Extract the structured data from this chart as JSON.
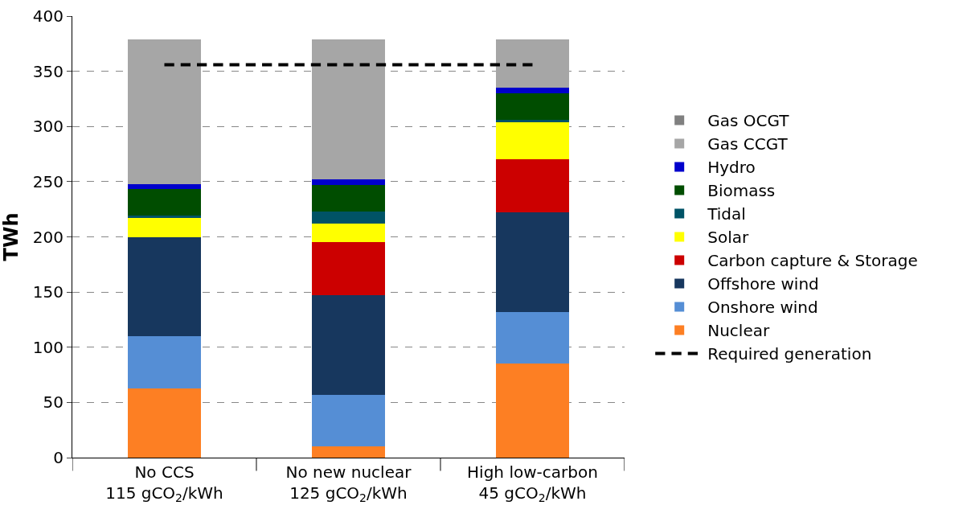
{
  "chart_data": {
    "type": "bar",
    "stacked": true,
    "ylabel": "TWh",
    "categories": [
      "No CCS\n115 gCO$_{2}$/kWh",
      "No new nuclear\n125 gCO$_{2}$/kWh",
      "High low-carbon\n45 gCO$_{2}$/kWh"
    ],
    "series": [
      {
        "name": "Nuclear",
        "color": "#fd7f23",
        "values": [
          63,
          10,
          85
        ]
      },
      {
        "name": "Onshore wind",
        "color": "#558ed5",
        "values": [
          47,
          47,
          47
        ]
      },
      {
        "name": "Offshore wind",
        "color": "#17375e",
        "values": [
          90,
          90,
          90
        ]
      },
      {
        "name": "Carbon capture & Storage",
        "color": "#cc0000",
        "values": [
          0,
          48,
          48
        ]
      },
      {
        "name": "Solar",
        "color": "#ffff00",
        "values": [
          17,
          17,
          34
        ]
      },
      {
        "name": "Tidal",
        "color": "#005366",
        "values": [
          2,
          11,
          2
        ]
      },
      {
        "name": "Biomass",
        "color": "#004d00",
        "values": [
          24,
          24,
          24
        ]
      },
      {
        "name": "Hydro",
        "color": "#0000cc",
        "values": [
          5,
          5,
          5
        ]
      },
      {
        "name": "Gas CCGT",
        "color": "#a6a6a6",
        "values": [
          131,
          127,
          44
        ]
      },
      {
        "name": "Gas OCGT",
        "color": "#808080",
        "values": [
          0,
          0,
          0
        ]
      },
      {
        "name": "Required generation",
        "type": "line",
        "color": "#000000",
        "line_style": "dashed",
        "values": [
          356,
          356,
          356
        ]
      }
    ],
    "ylim": [
      0,
      400
    ],
    "yticks": [
      0,
      50,
      100,
      150,
      200,
      250,
      300,
      350,
      400
    ],
    "grid": "y",
    "legend": "right"
  }
}
